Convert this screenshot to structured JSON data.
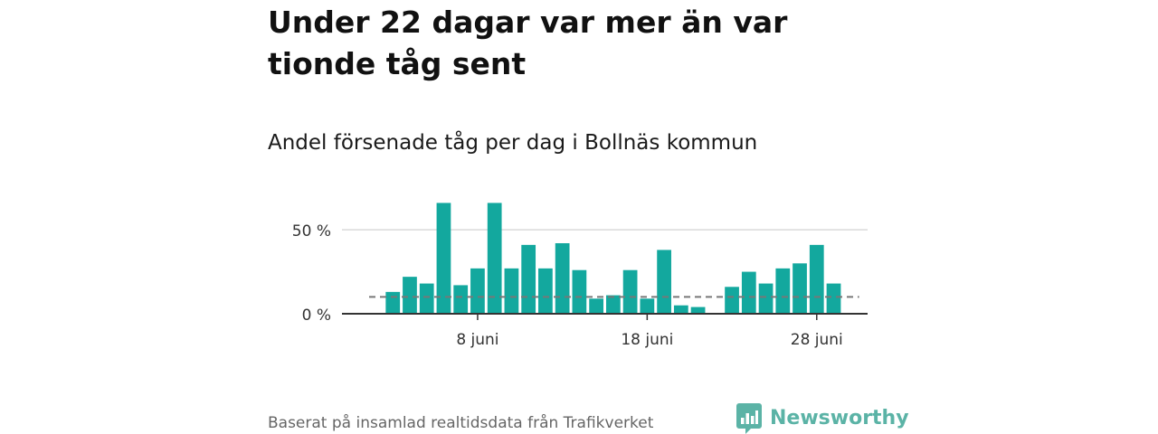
{
  "headline": "Under 22 dagar var mer än var tionde tåg sent",
  "subtitle": "Andel försenade tåg per dag i Bollnäs kommun",
  "source": "Baserat på insamlad realtidsdata från Trafikverket",
  "brand": {
    "name": "Newsworthy",
    "icon": "newsworthy-logo-icon",
    "color": "#5bb3a6"
  },
  "colors": {
    "bar": "#13a89e",
    "reference": "#777777",
    "gridline": "#d9d9d9",
    "baseline": "#333333"
  },
  "chart_data": {
    "type": "bar",
    "title": "Andel försenade tåg per dag i Bollnäs kommun",
    "xlabel": "",
    "ylabel": "",
    "unit": "%",
    "ylim": [
      0,
      70
    ],
    "yticks": [
      {
        "value": 0,
        "label": "0 %"
      },
      {
        "value": 50,
        "label": "50 %"
      }
    ],
    "xlim": [
      0,
      31
    ],
    "xticks": [
      {
        "day": 8,
        "label": "8 juni"
      },
      {
        "day": 18,
        "label": "18 juni"
      },
      {
        "day": 28,
        "label": "28 juni"
      }
    ],
    "days": [
      1,
      2,
      3,
      4,
      5,
      6,
      7,
      8,
      9,
      10,
      11,
      12,
      13,
      14,
      15,
      16,
      17,
      18,
      19,
      20,
      21,
      22,
      23,
      24,
      25,
      26,
      27,
      28,
      29,
      30
    ],
    "values": [
      null,
      null,
      13,
      22,
      18,
      66,
      17,
      27,
      66,
      27,
      41,
      27,
      42,
      26,
      9,
      11,
      26,
      9,
      38,
      5,
      4,
      null,
      16,
      25,
      18,
      27,
      30,
      41,
      18,
      null
    ],
    "reference": {
      "value": 10,
      "from_day": 0,
      "to_day": 30.5
    },
    "grid": "horizontal",
    "legend": "none"
  }
}
